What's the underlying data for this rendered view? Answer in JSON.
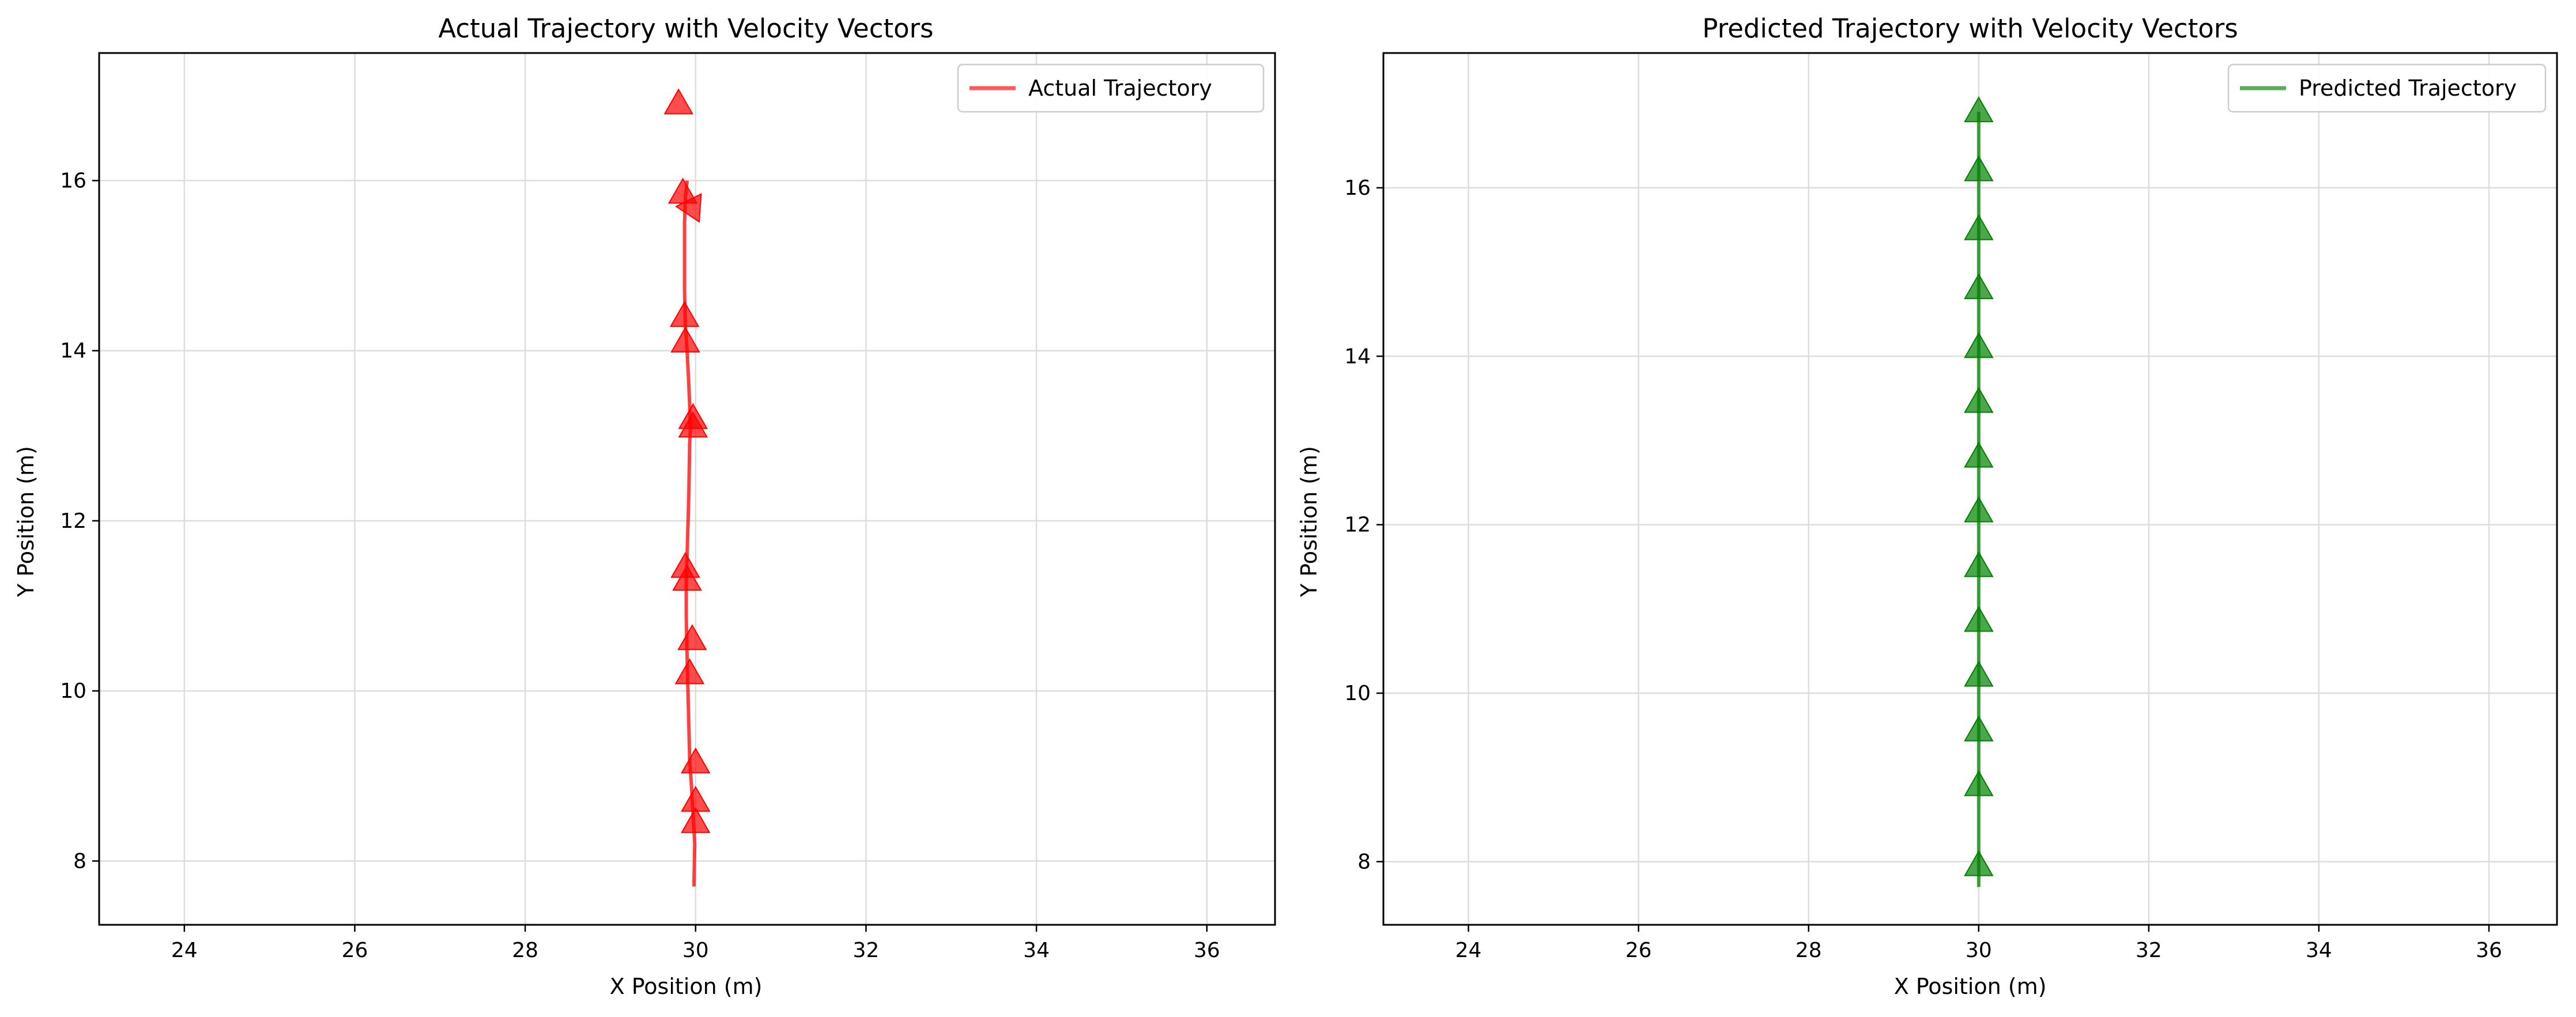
{
  "chart_data": [
    {
      "type": "line",
      "title": "Actual Trajectory with Velocity Vectors",
      "xlabel": "X Position (m)",
      "ylabel": "Y Position (m)",
      "xlim": [
        23.0,
        36.8
      ],
      "ylim": [
        7.25,
        17.5
      ],
      "xticks": [
        "24",
        "26",
        "28",
        "30",
        "32",
        "34",
        "36"
      ],
      "yticks": [
        "8",
        "10",
        "12",
        "14",
        "16"
      ],
      "grid": true,
      "legend_position": "top-right",
      "color": "#ff0000",
      "series": [
        {
          "name": "Actual Trajectory",
          "x": [
            29.98,
            29.99,
            29.97,
            29.95,
            29.93,
            29.92,
            29.91,
            29.9,
            29.89,
            29.89,
            29.9,
            29.92,
            29.93,
            29.94,
            29.92,
            29.9,
            29.88,
            29.87,
            29.87,
            29.87,
            29.88,
            29.9,
            29.9
          ],
          "y": [
            7.7,
            8.2,
            8.55,
            8.9,
            9.2,
            9.6,
            10.0,
            10.4,
            10.9,
            11.3,
            11.6,
            12.3,
            12.9,
            13.1,
            13.6,
            14.0,
            14.3,
            14.7,
            15.1,
            15.5,
            15.8,
            16.0,
            16.0
          ]
        }
      ],
      "velocity_arrows": [
        {
          "x": 30.0,
          "y": 8.45,
          "dx": 0.0,
          "dy": 0.15
        },
        {
          "x": 30.0,
          "y": 8.7,
          "dx": 0.0,
          "dy": 0.15
        },
        {
          "x": 30.0,
          "y": 9.15,
          "dx": 0.0,
          "dy": 0.15
        },
        {
          "x": 29.93,
          "y": 10.2,
          "dx": 0.0,
          "dy": 0.15
        },
        {
          "x": 29.96,
          "y": 10.6,
          "dx": 0.0,
          "dy": 0.15
        },
        {
          "x": 29.9,
          "y": 11.3,
          "dx": 0.0,
          "dy": 0.15
        },
        {
          "x": 29.88,
          "y": 11.45,
          "dx": 0.0,
          "dy": 0.15
        },
        {
          "x": 29.97,
          "y": 13.1,
          "dx": 0.0,
          "dy": 0.15
        },
        {
          "x": 29.97,
          "y": 13.2,
          "dx": 0.0,
          "dy": 0.15
        },
        {
          "x": 29.88,
          "y": 14.1,
          "dx": 0.0,
          "dy": 0.15
        },
        {
          "x": 29.87,
          "y": 14.4,
          "dx": 0.0,
          "dy": 0.15
        },
        {
          "x": 29.97,
          "y": 15.7,
          "dx": 0.08,
          "dy": 0.12
        },
        {
          "x": 29.85,
          "y": 15.85,
          "dx": 0.0,
          "dy": 0.15
        },
        {
          "x": 29.8,
          "y": 16.9,
          "dx": 0.0,
          "dy": 0.15
        }
      ]
    },
    {
      "type": "line",
      "title": "Predicted Trajectory with Velocity Vectors",
      "xlabel": "X Position (m)",
      "ylabel": "Y Position (m)",
      "xlim": [
        23.0,
        36.8
      ],
      "ylim": [
        7.25,
        17.6
      ],
      "xticks": [
        "24",
        "26",
        "28",
        "30",
        "32",
        "34",
        "36"
      ],
      "yticks": [
        "8",
        "10",
        "12",
        "14",
        "16"
      ],
      "grid": true,
      "legend_position": "top-right",
      "color": "#008000",
      "series": [
        {
          "name": "Predicted Trajectory",
          "x": [
            30.0,
            30.0,
            30.0,
            30.0,
            30.0,
            30.0,
            30.0,
            30.0,
            30.0,
            30.0,
            30.0,
            30.0,
            30.0,
            30.0,
            30.0
          ],
          "y": [
            7.7,
            7.95,
            8.9,
            9.55,
            10.2,
            10.85,
            11.5,
            12.15,
            12.8,
            13.45,
            14.1,
            14.8,
            15.5,
            16.2,
            16.9
          ]
        }
      ],
      "velocity_arrows": [
        {
          "x": 30.0,
          "y": 7.95,
          "dx": 0.0,
          "dy": 0.15
        },
        {
          "x": 30.0,
          "y": 8.9,
          "dx": 0.0,
          "dy": 0.15
        },
        {
          "x": 30.0,
          "y": 9.55,
          "dx": 0.0,
          "dy": 0.15
        },
        {
          "x": 30.0,
          "y": 10.2,
          "dx": 0.0,
          "dy": 0.15
        },
        {
          "x": 30.0,
          "y": 10.85,
          "dx": 0.0,
          "dy": 0.15
        },
        {
          "x": 30.0,
          "y": 11.5,
          "dx": 0.0,
          "dy": 0.15
        },
        {
          "x": 30.0,
          "y": 12.15,
          "dx": 0.0,
          "dy": 0.15
        },
        {
          "x": 30.0,
          "y": 12.8,
          "dx": 0.0,
          "dy": 0.15
        },
        {
          "x": 30.0,
          "y": 13.45,
          "dx": 0.0,
          "dy": 0.15
        },
        {
          "x": 30.0,
          "y": 14.1,
          "dx": 0.0,
          "dy": 0.15
        },
        {
          "x": 30.0,
          "y": 14.8,
          "dx": 0.0,
          "dy": 0.15
        },
        {
          "x": 30.0,
          "y": 15.5,
          "dx": 0.0,
          "dy": 0.15
        },
        {
          "x": 30.0,
          "y": 16.2,
          "dx": 0.0,
          "dy": 0.15
        },
        {
          "x": 30.0,
          "y": 16.9,
          "dx": 0.0,
          "dy": 0.15
        }
      ]
    }
  ]
}
